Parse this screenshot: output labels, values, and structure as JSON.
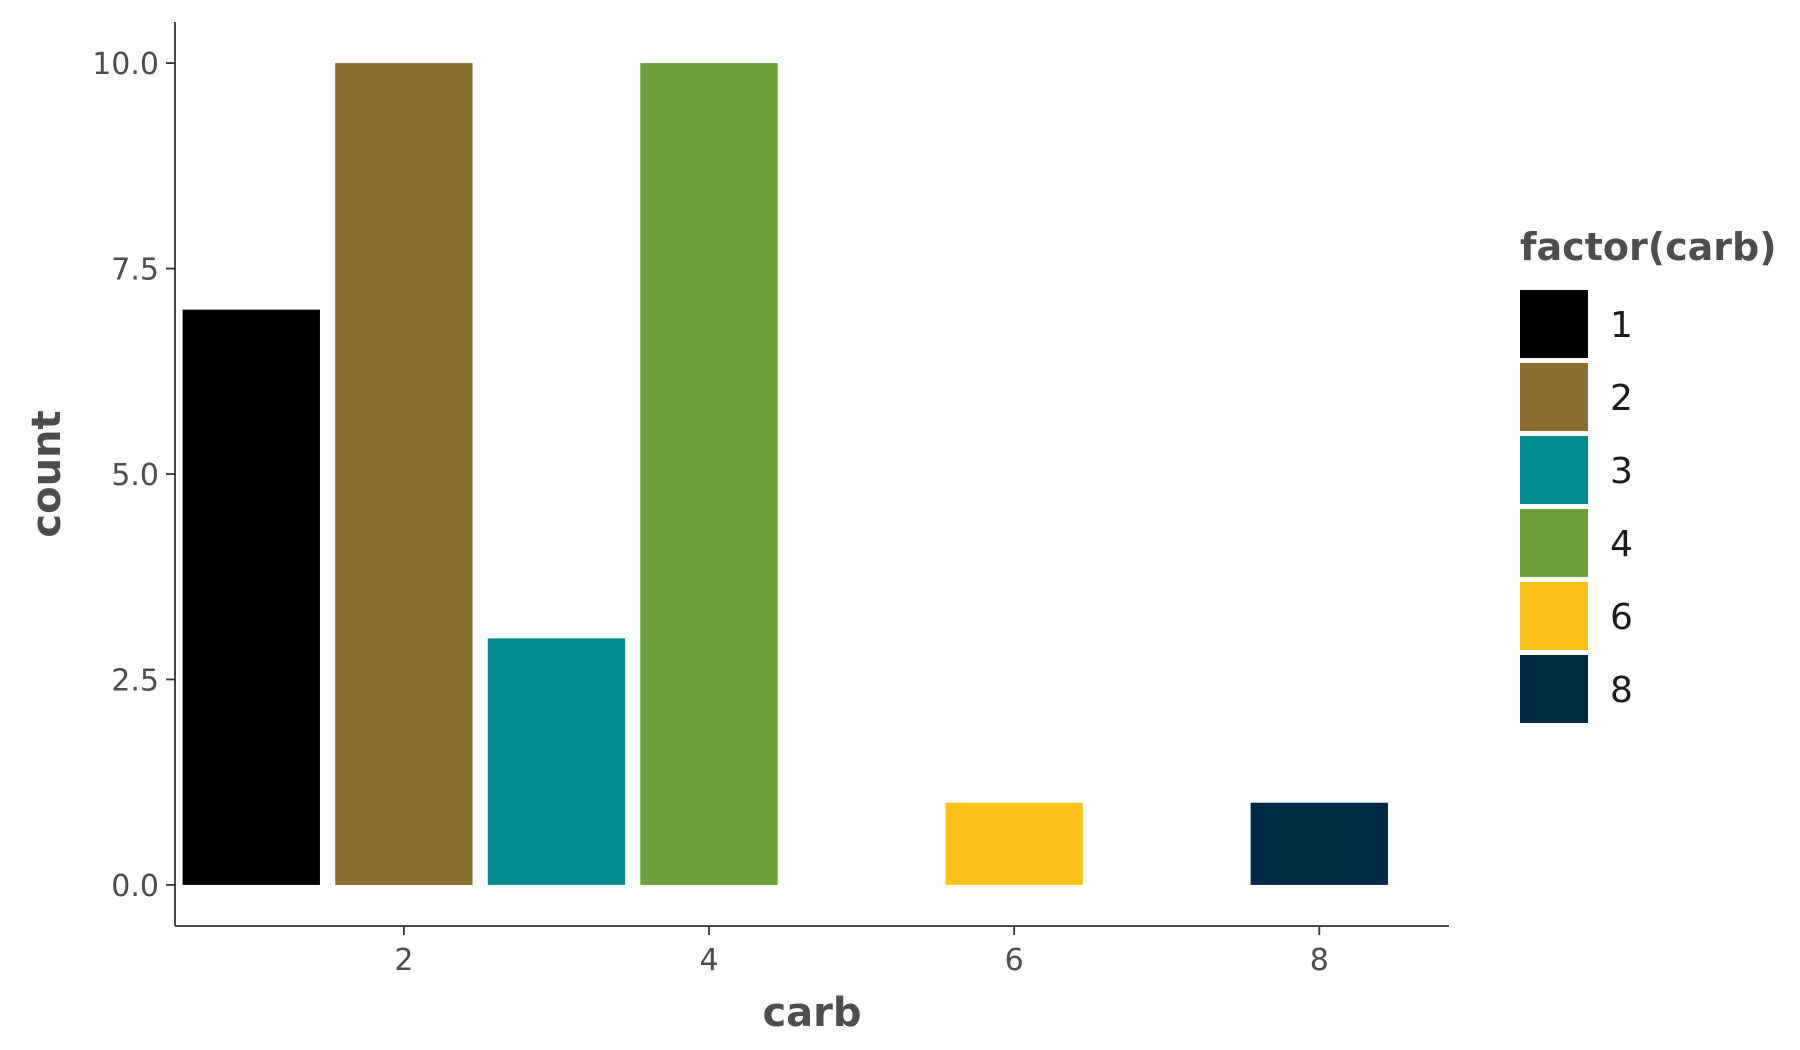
{
  "chart_data": {
    "type": "bar",
    "x": [
      1,
      2,
      3,
      4,
      6,
      8
    ],
    "values": [
      7,
      10,
      3,
      10,
      1,
      1
    ],
    "xlabel": "carb",
    "ylabel": "count",
    "xlim": [
      0.5,
      8.85
    ],
    "ylim": [
      -0.5,
      10.5
    ],
    "x_ticks": [
      2,
      4,
      6,
      8
    ],
    "y_ticks": [
      0,
      2.5,
      5,
      7.5,
      10
    ],
    "y_tick_labels": [
      "0.0",
      "2.5",
      "5.0",
      "7.5",
      "10.0"
    ],
    "x_tick_labels": [
      "2",
      "4",
      "6",
      "8"
    ],
    "grid": false,
    "legend": {
      "title": "factor(carb)",
      "placement": "right",
      "entries": [
        {
          "label": "1",
          "color": "#000000"
        },
        {
          "label": "2",
          "color": "#8a6d2d"
        },
        {
          "label": "3",
          "color": "#008b90"
        },
        {
          "label": "4",
          "color": "#6ba33a"
        },
        {
          "label": "6",
          "color": "#fbc116"
        },
        {
          "label": "8",
          "color": "#002a47"
        }
      ]
    }
  }
}
